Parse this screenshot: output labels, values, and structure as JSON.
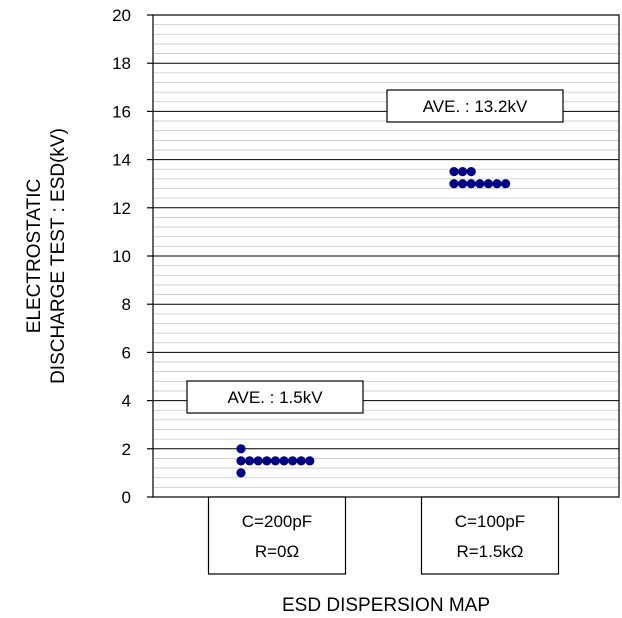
{
  "chart_data": {
    "type": "scatter",
    "title": "",
    "ylabel_lines": [
      "ELECTROSTATIC",
      "DISCHARGE TEST : ESD(kV)"
    ],
    "xlabel": "ESD DISPERSION MAP",
    "ylim": [
      0,
      20
    ],
    "y_major_step": 2,
    "y_minor_step": 0.4,
    "y_ticks": [
      "0",
      "2",
      "4",
      "6",
      "8",
      "10",
      "12",
      "14",
      "16",
      "18",
      "20"
    ],
    "grid": true,
    "categories": [
      {
        "line1": "C=200pF",
        "line2": "R=0Ω"
      },
      {
        "line1": "C=100pF",
        "line2": "R=1.5kΩ"
      }
    ],
    "series": [
      {
        "category_index": 0,
        "average_label": "AVE. : 1.5kV",
        "average": 1.5,
        "rows": [
          {
            "y": 2.0,
            "count": 1
          },
          {
            "y": 1.5,
            "count": 9
          },
          {
            "y": 1.0,
            "count": 1
          }
        ]
      },
      {
        "category_index": 1,
        "average_label": "AVE. : 13.2kV",
        "average": 13.2,
        "rows": [
          {
            "y": 13.5,
            "count": 3
          },
          {
            "y": 13.0,
            "count": 7
          }
        ]
      }
    ],
    "marker_color": "#000080"
  }
}
